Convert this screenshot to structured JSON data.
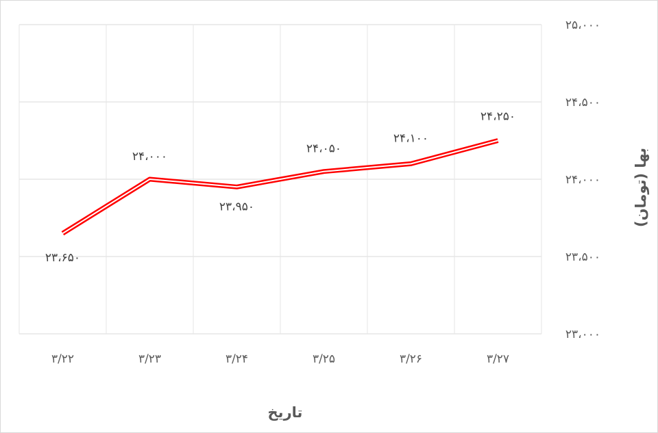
{
  "chart_data": {
    "type": "line",
    "categories": [
      "۳/۲۲",
      "۳/۲۳",
      "۳/۲۴",
      "۳/۲۵",
      "۳/۲۶",
      "۳/۲۷"
    ],
    "series": [
      {
        "values": [
          23650,
          24000,
          23950,
          24050,
          24100,
          24250
        ],
        "labels": [
          "۲۳،۶۵۰",
          "۲۴،۰۰۰",
          "۲۳،۹۵۰",
          "۲۴،۰۵۰",
          "۲۴،۱۰۰",
          "۲۴،۲۵۰"
        ]
      }
    ],
    "xlabel": "تاریخ",
    "ylabel": "بها (تومان)",
    "ylim": [
      23000,
      25000
    ],
    "yticks": [
      23000,
      23500,
      24000,
      24500,
      25000
    ],
    "ytick_labels": [
      "۲۳،۰۰۰",
      "۲۳،۵۰۰",
      "۲۴،۰۰۰",
      "۲۴،۵۰۰",
      "۲۵،۰۰۰"
    ],
    "y_axis_position": "right",
    "grid": true,
    "line_color": "#ff0000",
    "line_style": "double"
  }
}
